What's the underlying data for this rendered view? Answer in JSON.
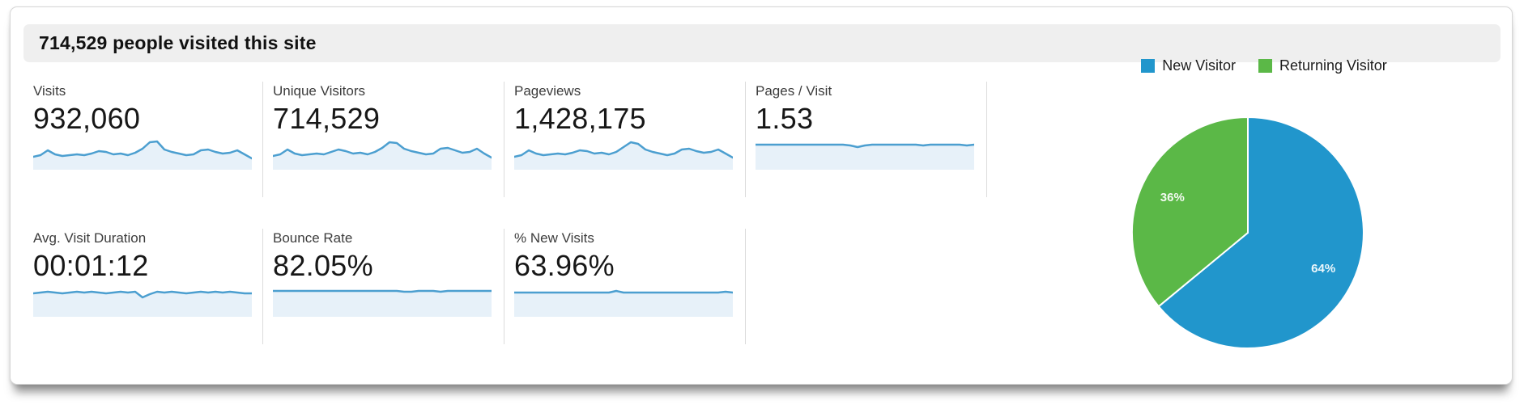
{
  "header": {
    "title": "714,529 people visited this site"
  },
  "metrics": {
    "rows": [
      {
        "cells": [
          {
            "label": "Visits",
            "value": "932,060"
          },
          {
            "label": "Unique Visitors",
            "value": "714,529"
          },
          {
            "label": "Pageviews",
            "value": "1,428,175"
          },
          {
            "label": "Pages / Visit",
            "value": "1.53"
          }
        ]
      },
      {
        "cells": [
          {
            "label": "Avg. Visit Duration",
            "value": "00:01:12"
          },
          {
            "label": "Bounce Rate",
            "value": "82.05%"
          },
          {
            "label": "% New Visits",
            "value": "63.96%"
          }
        ]
      }
    ]
  },
  "colors": {
    "header_bg": "#efefef",
    "divider": "#dcdcdc",
    "spark_line": "#4c9fd0",
    "spark_fill": "#e7f1f9",
    "pie_new": "#2196cc",
    "pie_returning": "#5bb847"
  },
  "chart_data": [
    {
      "type": "pie",
      "labels": [
        "New Visitor",
        "Returning Visitor"
      ],
      "values": [
        64,
        36
      ],
      "slice_labels": [
        "64%",
        "36%"
      ],
      "colors": [
        "#2196cc",
        "#5bb847"
      ],
      "legend_position": "top",
      "start_angle_deg": 0,
      "direction": "clockwise"
    },
    {
      "type": "line",
      "subtype": "sparkline-set",
      "x_points": 31,
      "note": "per-metric 30-day trend sparklines; y in px from top of 40px box (smaller = higher)",
      "series": [
        {
          "name": "Visits",
          "y": [
            24,
            22,
            16,
            21,
            23,
            22,
            21,
            22,
            20,
            17,
            18,
            21,
            20,
            22,
            19,
            14,
            6,
            5,
            15,
            18,
            20,
            22,
            21,
            16,
            15,
            18,
            20,
            19,
            16,
            21,
            26
          ]
        },
        {
          "name": "Unique Visitors",
          "y": [
            23,
            21,
            15,
            20,
            22,
            21,
            20,
            21,
            18,
            15,
            17,
            20,
            19,
            21,
            18,
            13,
            6,
            7,
            14,
            17,
            19,
            21,
            20,
            14,
            13,
            16,
            19,
            18,
            14,
            20,
            25
          ]
        },
        {
          "name": "Pageviews",
          "y": [
            24,
            22,
            16,
            20,
            22,
            21,
            20,
            21,
            19,
            16,
            17,
            20,
            19,
            21,
            18,
            12,
            6,
            8,
            15,
            18,
            20,
            22,
            20,
            15,
            14,
            17,
            19,
            18,
            15,
            20,
            25
          ]
        },
        {
          "name": "Pages / Visit",
          "y": [
            9,
            9,
            9,
            9,
            9,
            9,
            9,
            9,
            9,
            9,
            9,
            9,
            9,
            10,
            12,
            10,
            9,
            9,
            9,
            9,
            9,
            9,
            9,
            10,
            9,
            9,
            9,
            9,
            9,
            10,
            9
          ]
        },
        {
          "name": "Avg. Visit Duration",
          "y": [
            11,
            10,
            9,
            10,
            11,
            10,
            9,
            10,
            9,
            10,
            11,
            10,
            9,
            10,
            9,
            16,
            12,
            9,
            10,
            9,
            10,
            11,
            10,
            9,
            10,
            9,
            10,
            9,
            10,
            11,
            11
          ]
        },
        {
          "name": "Bounce Rate",
          "y": [
            8,
            8,
            8,
            8,
            8,
            8,
            8,
            8,
            8,
            8,
            8,
            8,
            8,
            8,
            8,
            8,
            8,
            8,
            9,
            9,
            8,
            8,
            8,
            9,
            8,
            8,
            8,
            8,
            8,
            8,
            8
          ]
        },
        {
          "name": "% New Visits",
          "y": [
            10,
            10,
            10,
            10,
            10,
            10,
            10,
            10,
            10,
            10,
            10,
            10,
            10,
            10,
            8,
            10,
            10,
            10,
            10,
            10,
            10,
            10,
            10,
            10,
            10,
            10,
            10,
            10,
            10,
            9,
            10
          ]
        }
      ]
    }
  ]
}
